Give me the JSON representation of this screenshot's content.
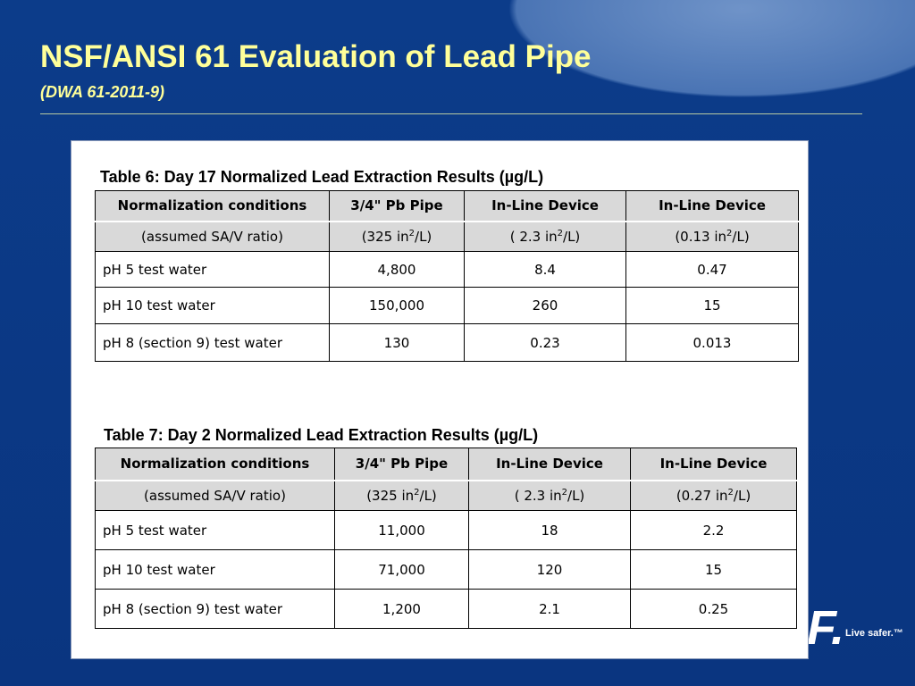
{
  "header": {
    "title": "NSF/ANSI 61 Evaluation of Lead Pipe",
    "subtitle": "(DWA 61-2011-9)"
  },
  "tables": [
    {
      "caption": "Table 6:  Day 17 Normalized Lead Extraction Results (µg/L)",
      "header": [
        "Normalization conditions",
        "3/4\" Pb Pipe",
        "In-Line Device",
        "In-Line Device"
      ],
      "subheader": [
        [
          "(assumed SA/V ratio)"
        ],
        [
          "(325 in",
          "2",
          "/L)"
        ],
        [
          "( 2.3 in",
          "2",
          "/L)"
        ],
        [
          "(0.13 in",
          "2",
          "/L)"
        ]
      ],
      "rows": [
        [
          "pH 5 test water",
          "4,800",
          "8.4",
          "0.47"
        ],
        [
          "pH 10 test water",
          "150,000",
          "260",
          "15"
        ],
        [
          "pH 8 (section 9) test water",
          "130",
          "0.23",
          "0.013"
        ]
      ]
    },
    {
      "caption": "Table 7:  Day 2 Normalized Lead Extraction Results (µg/L)",
      "header": [
        "Normalization conditions",
        "3/4\" Pb Pipe",
        "In-Line Device",
        "In-Line Device"
      ],
      "subheader": [
        [
          "(assumed SA/V ratio)"
        ],
        [
          "(325 in",
          "2",
          "/L)"
        ],
        [
          "( 2.3 in",
          "2",
          "/L)"
        ],
        [
          "(0.27 in",
          "2",
          "/L)"
        ]
      ],
      "rows": [
        [
          "pH 5 test water",
          "11,000",
          "18",
          "2.2"
        ],
        [
          "pH 10 test water",
          "71,000",
          "120",
          "15"
        ],
        [
          "pH 8 (section 9) test water",
          "1,200",
          "2.1",
          "0.25"
        ]
      ]
    }
  ],
  "footer": {
    "logo": "F.",
    "tagline": "Live safer.™"
  }
}
